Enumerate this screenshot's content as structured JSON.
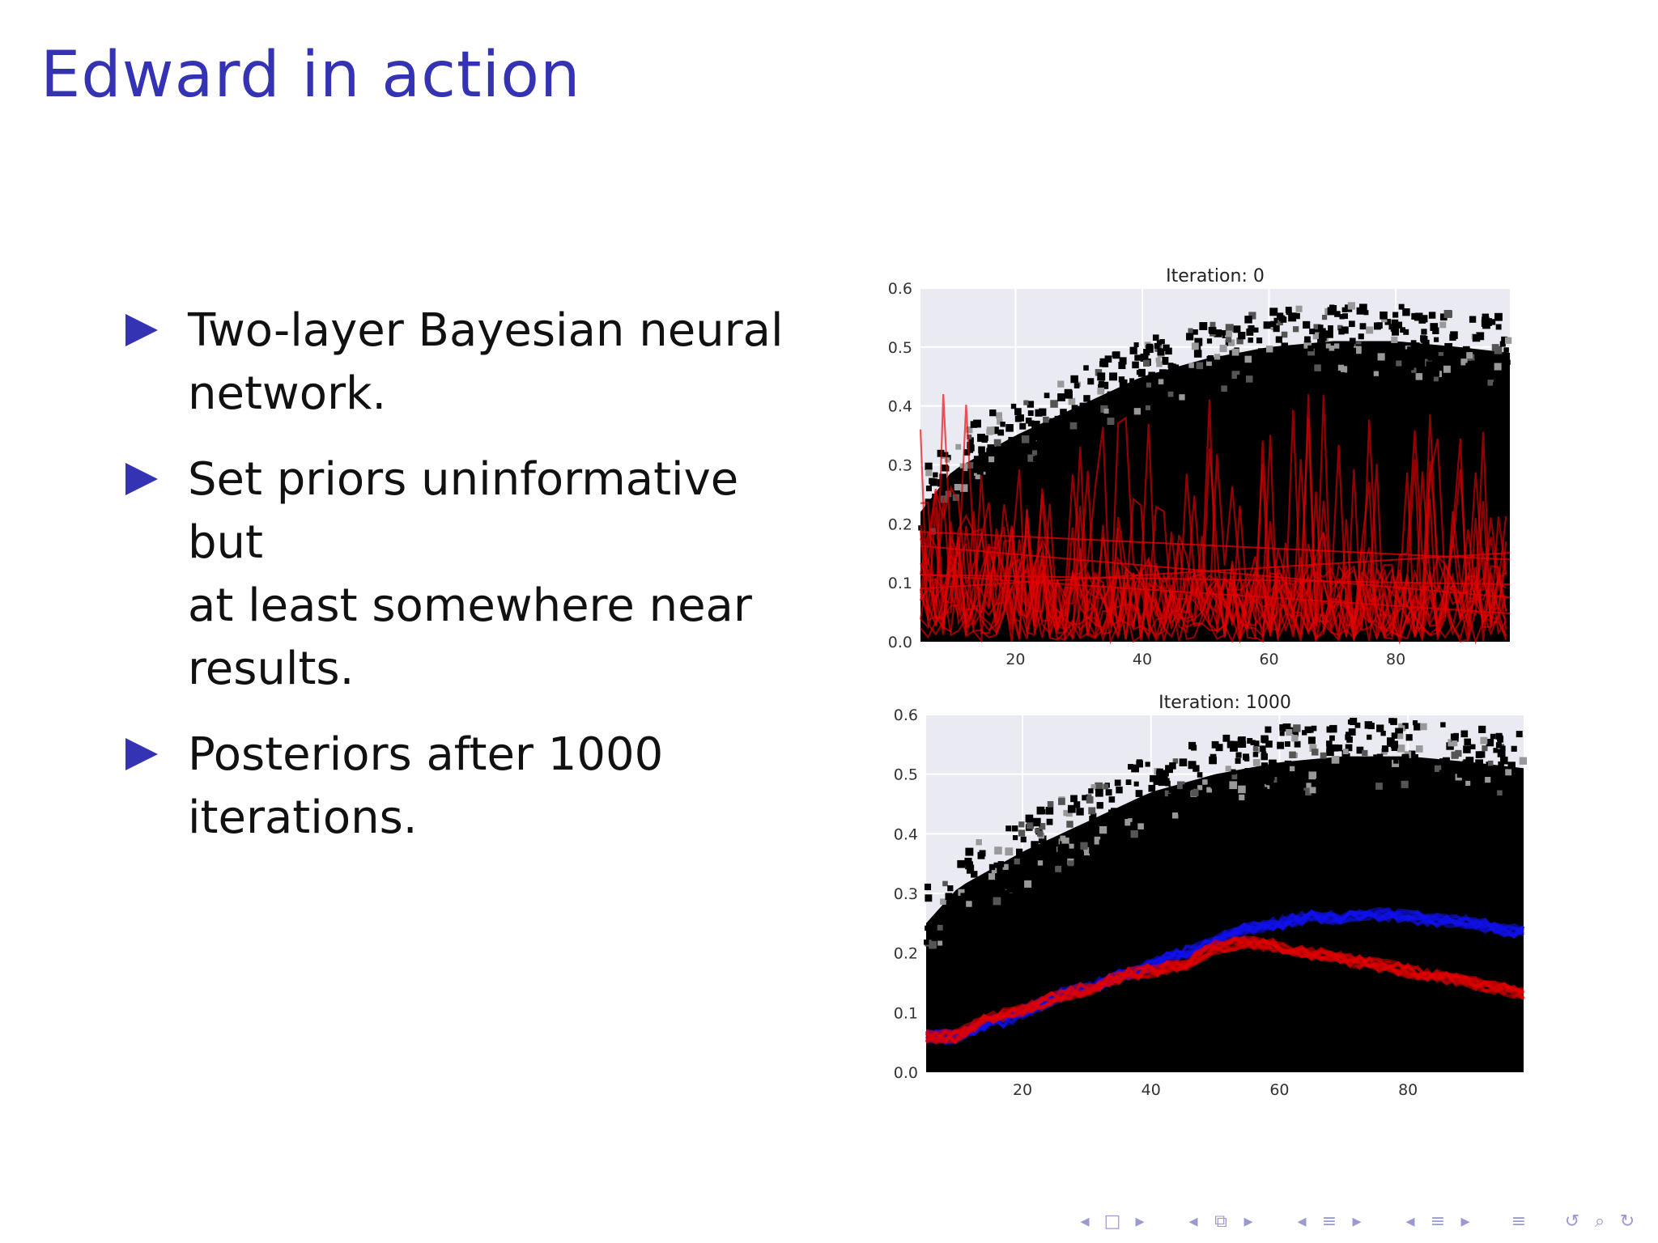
{
  "slide": {
    "title": "Edward in action",
    "bullets": [
      {
        "lines": [
          "Two-layer Bayesian neural",
          "network."
        ]
      },
      {
        "lines": [
          "Set priors uninformative but",
          "at least somewhere near",
          "results."
        ]
      },
      {
        "lines": [
          "Posteriors after 1000",
          "iterations."
        ]
      }
    ]
  },
  "colors": {
    "title": "#3333b3",
    "bullet_marker": "#3333b3",
    "plot_background": "#eaeaf2",
    "data_points": "#000000",
    "posterior_red": "#e00000",
    "posterior_blue": "#1010ee",
    "nav_icons": "#9a9ad0"
  },
  "chart_data": [
    {
      "type": "line",
      "title": "Iteration: 0",
      "xlim": [
        5,
        98
      ],
      "ylim": [
        0.0,
        0.6
      ],
      "x_ticks": [
        20,
        40,
        60,
        80
      ],
      "y_ticks": [
        0.0,
        0.1,
        0.2,
        0.3,
        0.4,
        0.5,
        0.6
      ],
      "grid": true,
      "legend": "top-right (mostly hidden behind data points)",
      "scatter_upper_envelope": {
        "x": [
          5,
          10,
          20,
          30,
          40,
          50,
          60,
          70,
          80,
          90,
          98
        ],
        "y": [
          0.25,
          0.32,
          0.38,
          0.43,
          0.48,
          0.51,
          0.53,
          0.54,
          0.54,
          0.53,
          0.52
        ]
      },
      "series": [
        {
          "color": "red",
          "kind": "noisy posterior draws (spiky, untrained)",
          "baseline": [
            0.0,
            0.2
          ]
        },
        {
          "color": "red",
          "kind": "smooth trend draws",
          "x": [
            5,
            98
          ],
          "y_start": [
            0.08,
            0.2
          ],
          "y_end": [
            0.04,
            0.16
          ]
        }
      ]
    },
    {
      "type": "line",
      "title": "Iteration: 1000",
      "xlim": [
        5,
        98
      ],
      "ylim": [
        0.0,
        0.6
      ],
      "x_ticks": [
        20,
        40,
        60,
        80
      ],
      "y_ticks": [
        0.0,
        0.1,
        0.2,
        0.3,
        0.4,
        0.5,
        0.6
      ],
      "grid": true,
      "legend": "top-right (mostly hidden behind data points)",
      "scatter_upper_envelope": {
        "x": [
          5,
          10,
          20,
          30,
          40,
          50,
          60,
          70,
          80,
          90,
          98
        ],
        "y": [
          0.28,
          0.34,
          0.4,
          0.45,
          0.5,
          0.53,
          0.55,
          0.56,
          0.56,
          0.55,
          0.54
        ]
      },
      "series": [
        {
          "color": "blue",
          "x": [
            5,
            10,
            14,
            18,
            22,
            26,
            30,
            35,
            40,
            45,
            50,
            55,
            60,
            65,
            70,
            75,
            80,
            85,
            90,
            95,
            98
          ],
          "y": [
            0.06,
            0.06,
            0.08,
            0.09,
            0.11,
            0.13,
            0.14,
            0.16,
            0.18,
            0.2,
            0.22,
            0.24,
            0.25,
            0.26,
            0.26,
            0.265,
            0.26,
            0.255,
            0.25,
            0.24,
            0.235
          ]
        },
        {
          "color": "red",
          "x": [
            5,
            10,
            14,
            18,
            22,
            26,
            30,
            35,
            40,
            45,
            50,
            55,
            60,
            65,
            70,
            75,
            80,
            85,
            90,
            95,
            98
          ],
          "y": [
            0.06,
            0.06,
            0.09,
            0.1,
            0.11,
            0.13,
            0.14,
            0.16,
            0.17,
            0.18,
            0.21,
            0.22,
            0.21,
            0.2,
            0.19,
            0.18,
            0.17,
            0.16,
            0.15,
            0.14,
            0.13
          ]
        }
      ]
    }
  ],
  "nav": {
    "icons": [
      "◂",
      "□",
      "▸",
      "◂",
      "⧉",
      "▸",
      "◂",
      "≡",
      "▸",
      "◂",
      "≡",
      "▸",
      "≡",
      "↺",
      "⌕",
      "↻"
    ]
  }
}
